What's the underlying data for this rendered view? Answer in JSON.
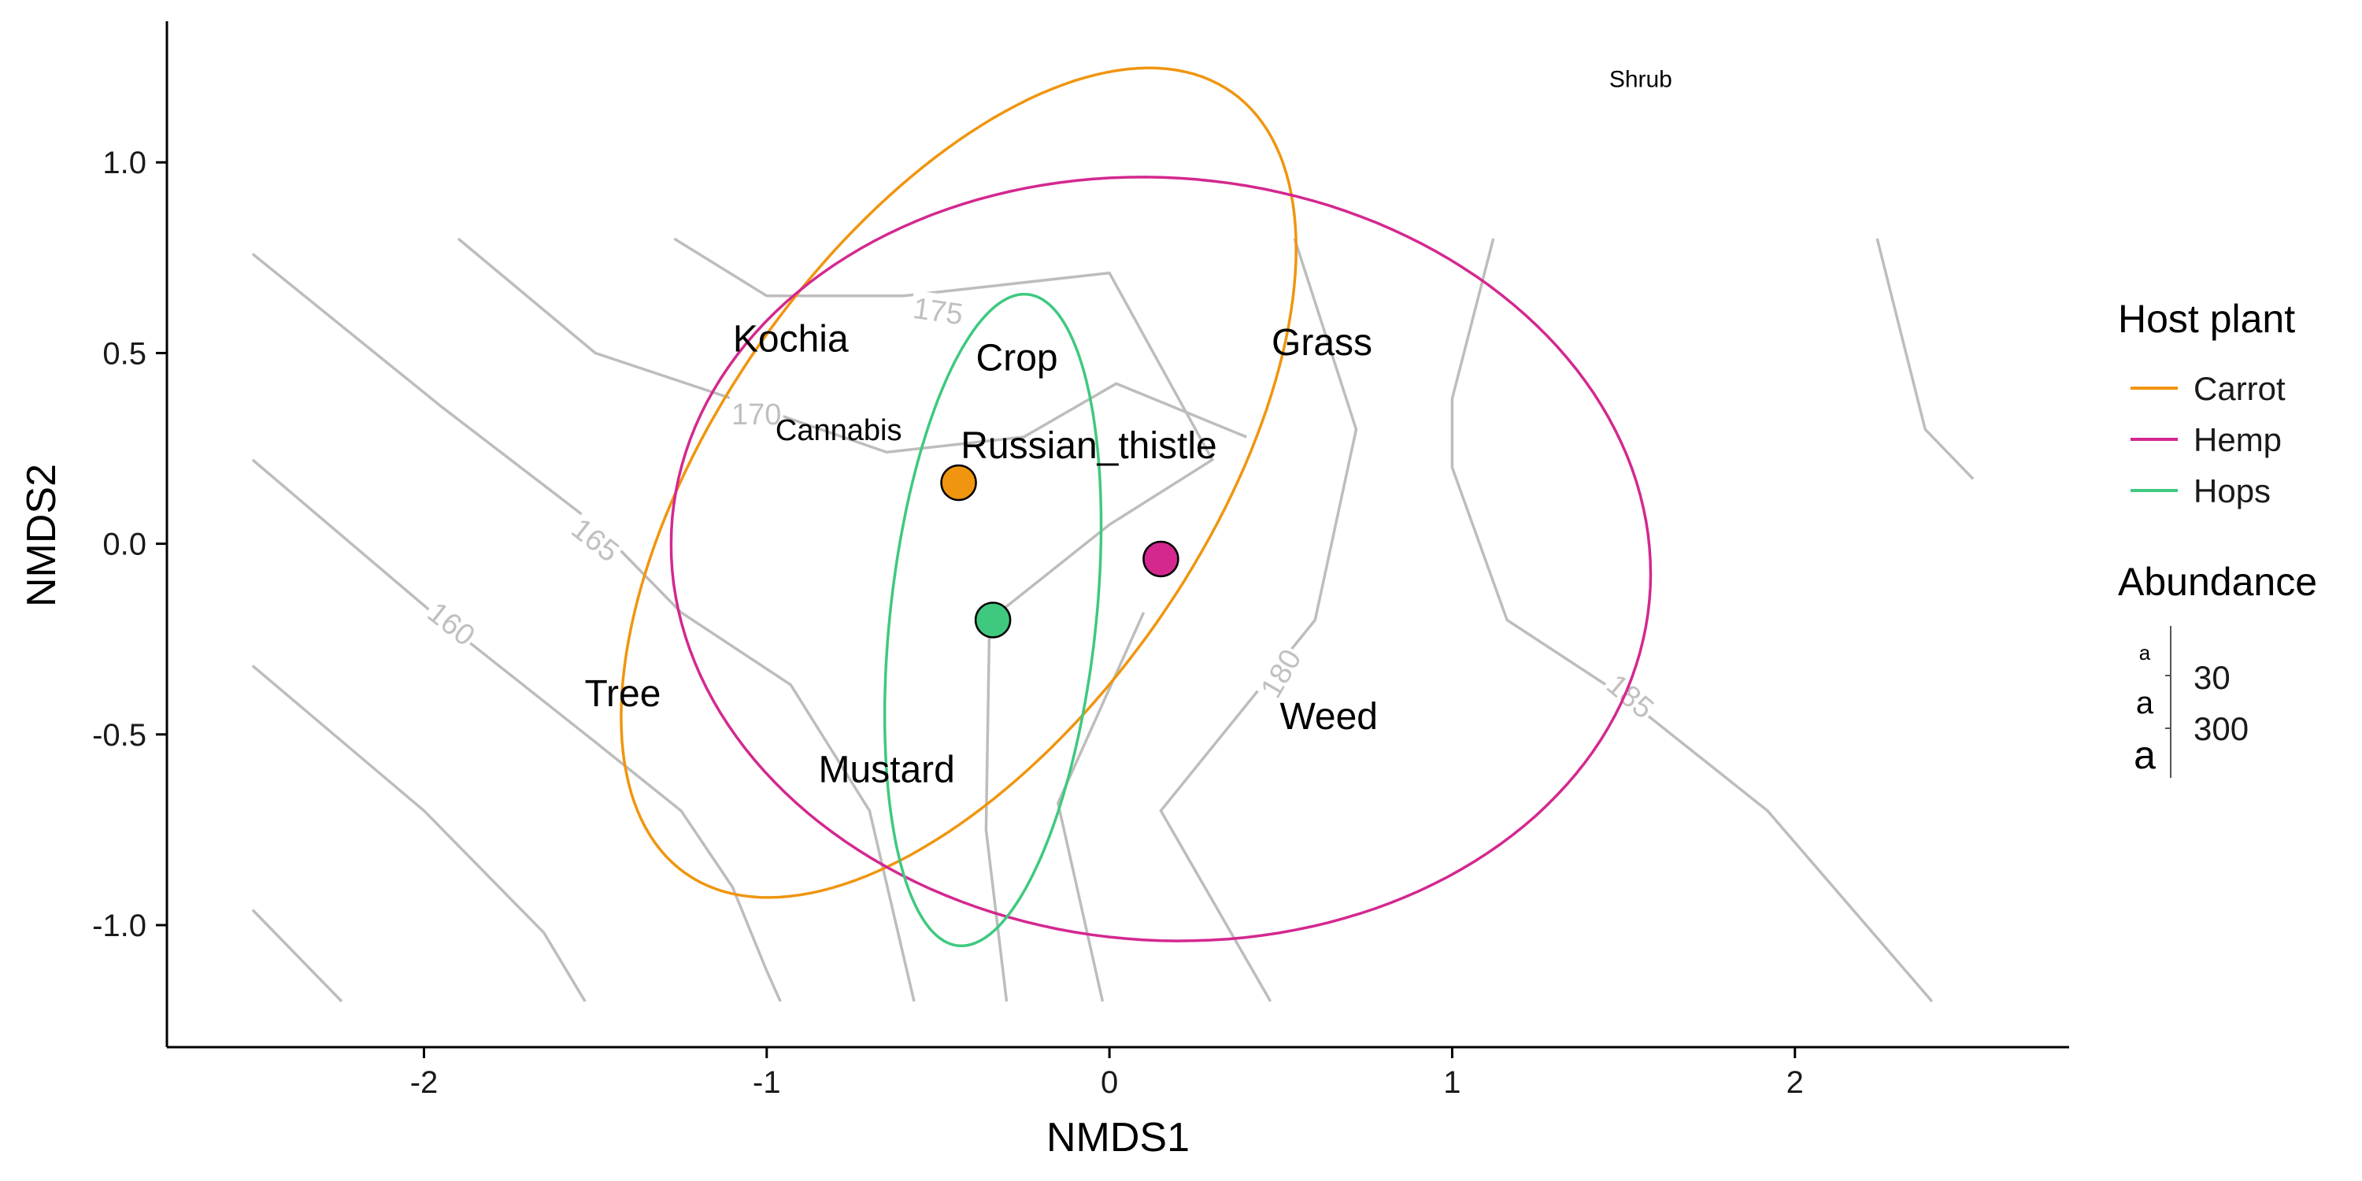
{
  "chart_data": {
    "type": "scatter",
    "xlabel": "NMDS1",
    "ylabel": "NMDS2",
    "xlim": [
      -2.75,
      2.8
    ],
    "ylim": [
      -1.32,
      1.37
    ],
    "x_ticks": [
      -2,
      -1,
      0,
      1,
      2
    ],
    "x_tick_labels": [
      "-2",
      "-1",
      "0",
      "1",
      "2"
    ],
    "y_ticks": [
      -1.0,
      -0.5,
      0.0,
      0.5,
      1.0
    ],
    "y_tick_labels": [
      "-1.0",
      "-0.5",
      "0.0",
      "0.5",
      "1.0"
    ],
    "grid": false,
    "series": [
      {
        "name": "Carrot",
        "color": "#f0950f",
        "centroid": [
          -0.44,
          0.16
        ],
        "ellipse": {
          "cx": -0.44,
          "cy": 0.16,
          "rx": 1.3,
          "ry": 0.68,
          "angle_deg": 50
        }
      },
      {
        "name": "Hemp",
        "color": "#d4288f",
        "centroid": [
          0.15,
          -0.04
        ],
        "ellipse": {
          "cx": 0.15,
          "cy": -0.04,
          "rx": 1.43,
          "ry": 1.0,
          "angle_deg": -3
        }
      },
      {
        "name": "Hops",
        "color": "#3ec97f",
        "centroid": [
          -0.34,
          -0.2
        ],
        "ellipse": {
          "cx": -0.34,
          "cy": -0.2,
          "rx": 0.3,
          "ry": 0.86,
          "angle_deg": -7
        }
      }
    ],
    "contours": [
      {
        "points": [
          [
            -2.5,
            0.76
          ],
          [
            -1.95,
            0.36
          ],
          [
            -1.5,
            0.05
          ],
          [
            -1.25,
            -0.18
          ],
          [
            -0.93,
            -0.37
          ],
          [
            -0.7,
            -0.7
          ],
          [
            -0.57,
            -1.2
          ]
        ]
      },
      {
        "points": [
          [
            -2.5,
            0.22
          ],
          [
            -1.95,
            -0.2
          ],
          [
            -1.5,
            -0.52
          ],
          [
            -1.25,
            -0.7
          ],
          [
            -1.1,
            -0.9
          ],
          [
            -1.0,
            -1.12
          ],
          [
            -0.96,
            -1.2
          ]
        ]
      },
      {
        "points": [
          [
            -2.5,
            -0.32
          ],
          [
            -2.0,
            -0.7
          ],
          [
            -1.65,
            -1.02
          ],
          [
            -1.53,
            -1.2
          ]
        ]
      },
      {
        "points": [
          [
            -2.5,
            -0.96
          ],
          [
            -2.24,
            -1.2
          ]
        ]
      },
      {
        "points": [
          [
            -1.9,
            0.8
          ],
          [
            -1.5,
            0.5
          ],
          [
            -1.1,
            0.38
          ],
          [
            -0.65,
            0.24
          ],
          [
            -0.25,
            0.28
          ],
          [
            0.02,
            0.42
          ],
          [
            0.4,
            0.28
          ]
        ]
      },
      {
        "points": [
          [
            -1.27,
            0.8
          ],
          [
            -1.0,
            0.65
          ],
          [
            -0.6,
            0.65
          ],
          [
            0.0,
            0.71
          ],
          [
            0.3,
            0.22
          ],
          [
            0.0,
            0.05
          ],
          [
            -0.35,
            -0.2
          ],
          [
            -0.36,
            -0.75
          ],
          [
            -0.3,
            -1.2
          ]
        ]
      },
      {
        "points": [
          [
            0.1,
            -0.18
          ],
          [
            -0.15,
            -0.68
          ],
          [
            -0.02,
            -1.2
          ]
        ]
      },
      {
        "points": [
          [
            0.54,
            0.8
          ],
          [
            0.72,
            0.3
          ],
          [
            0.6,
            -0.2
          ],
          [
            0.15,
            -0.7
          ],
          [
            0.47,
            -1.2
          ]
        ]
      },
      {
        "points": [
          [
            1.12,
            0.8
          ],
          [
            1.0,
            0.38
          ],
          [
            1.0,
            0.2
          ],
          [
            1.16,
            -0.2
          ],
          [
            1.5,
            -0.4
          ],
          [
            1.92,
            -0.7
          ],
          [
            2.4,
            -1.2
          ]
        ]
      },
      {
        "points": [
          [
            2.24,
            0.8
          ],
          [
            2.38,
            0.3
          ],
          [
            2.52,
            0.17
          ]
        ]
      }
    ],
    "contour_labels": [
      {
        "text": "175",
        "x": -0.5,
        "y": 0.61,
        "angle": 8
      },
      {
        "text": "170",
        "x": -1.03,
        "y": 0.34,
        "angle": 0
      },
      {
        "text": "165",
        "x": -1.5,
        "y": 0.01,
        "angle": 38
      },
      {
        "text": "160",
        "x": -1.92,
        "y": -0.21,
        "angle": 38
      },
      {
        "text": "180",
        "x": 0.5,
        "y": -0.34,
        "angle": -60
      },
      {
        "text": "185",
        "x": 1.52,
        "y": -0.4,
        "angle": 40
      }
    ],
    "labels": [
      {
        "text": "Kochia",
        "x": -0.93,
        "y": 0.54,
        "size": 48
      },
      {
        "text": "Crop",
        "x": -0.27,
        "y": 0.49,
        "size": 48
      },
      {
        "text": "Grass",
        "x": 0.62,
        "y": 0.53,
        "size": 48
      },
      {
        "text": "Cannabis",
        "x": -0.79,
        "y": 0.3,
        "size": 38
      },
      {
        "text": "Russian_thistle",
        "x": -0.06,
        "y": 0.26,
        "size": 48
      },
      {
        "text": "Tree",
        "x": -1.42,
        "y": -0.39,
        "size": 48
      },
      {
        "text": "Weed",
        "x": 0.64,
        "y": -0.45,
        "size": 48
      },
      {
        "text": "Mustard",
        "x": -0.65,
        "y": -0.59,
        "size": 48
      },
      {
        "text": "Shrub",
        "x": 1.55,
        "y": 1.22,
        "size": 30
      }
    ],
    "legend": {
      "position": "right",
      "color_title": "Host plant",
      "size_title": "Abundance",
      "size_keys": [
        "a",
        "a",
        "a"
      ],
      "size_values": [
        "30",
        "300"
      ]
    }
  }
}
